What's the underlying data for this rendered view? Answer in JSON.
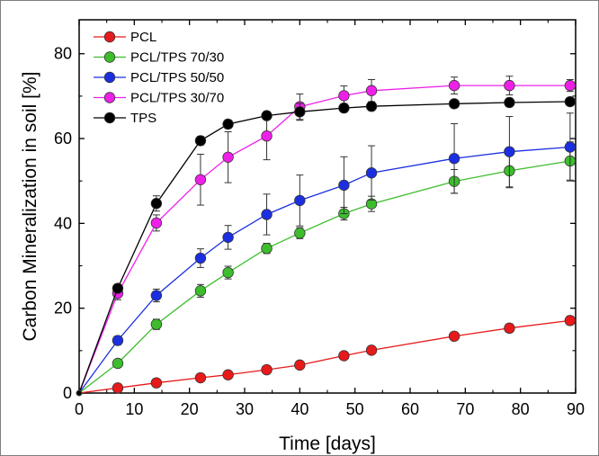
{
  "chart_data": {
    "type": "line",
    "title": "",
    "xlabel": "Time [days]",
    "ylabel": "Carbon Mineralization in soil [%]",
    "xlim": [
      0,
      90
    ],
    "ylim": [
      0,
      88
    ],
    "xticks": [
      0,
      10,
      20,
      30,
      40,
      50,
      60,
      70,
      80,
      90
    ],
    "yticks": [
      0,
      20,
      40,
      60,
      80
    ],
    "grid": false,
    "legend_position": "top-left",
    "series": [
      {
        "name": "PCL",
        "color": "#e8191a",
        "x": [
          0,
          7,
          14,
          22,
          27,
          34,
          40,
          48,
          53,
          68,
          78,
          89
        ],
        "y": [
          0,
          1.2,
          2.4,
          3.6,
          4.3,
          5.5,
          6.6,
          8.8,
          10.1,
          13.4,
          15.3,
          17.1
        ],
        "err": [
          0,
          0.3,
          0.4,
          0.5,
          0.5,
          0.6,
          0.7,
          0.9,
          0.8,
          0.9,
          1.0,
          1.0
        ]
      },
      {
        "name": "PCL/TPS 70/30",
        "color": "#3dbd2c",
        "x": [
          0,
          7,
          14,
          22,
          27,
          34,
          40,
          48,
          53,
          68,
          78,
          89
        ],
        "y": [
          0,
          7,
          16.2,
          24.1,
          28.4,
          34.1,
          37.7,
          42.3,
          44.6,
          49.9,
          52.4,
          54.7
        ],
        "err": [
          0,
          0.8,
          1.2,
          1.5,
          1.5,
          1.2,
          1.3,
          1.5,
          1.8,
          2.8,
          4.0,
          4.5
        ]
      },
      {
        "name": "PCL/TPS 50/50",
        "color": "#1b2fe0",
        "x": [
          0,
          7,
          14,
          22,
          27,
          34,
          40,
          48,
          53,
          68,
          78,
          89
        ],
        "y": [
          0,
          12.4,
          23,
          31.8,
          36.7,
          42.1,
          45.4,
          49,
          51.9,
          55.3,
          56.9,
          58
        ],
        "err": [
          0,
          1.0,
          1.5,
          2.2,
          2.8,
          4.8,
          6.0,
          6.7,
          6.4,
          8.2,
          8.3,
          8.0
        ]
      },
      {
        "name": "PCL/TPS 30/70",
        "color": "#ee20e8",
        "x": [
          0,
          7,
          14,
          22,
          27,
          34,
          40,
          48,
          53,
          68,
          78,
          89
        ],
        "y": [
          0,
          23.5,
          40.1,
          50.3,
          55.6,
          60.6,
          67.5,
          70.1,
          71.3,
          72.5,
          72.5,
          72.5
        ],
        "err": [
          0,
          1.5,
          1.9,
          6.0,
          6.0,
          5.6,
          3.0,
          2.3,
          2.6,
          2.0,
          2.2,
          1.4
        ]
      },
      {
        "name": "TPS",
        "color": "#000000",
        "x": [
          0,
          7,
          14,
          22,
          27,
          34,
          40,
          48,
          53,
          68,
          78,
          89
        ],
        "y": [
          0,
          24.7,
          44.7,
          59.5,
          63.4,
          65.4,
          66.3,
          67.2,
          67.6,
          68.2,
          68.5,
          68.7
        ],
        "err": [
          0,
          0.8,
          1.8,
          1.0,
          1.0,
          0.8,
          2.0,
          1.0,
          1.0,
          0.9,
          1.0,
          0.9
        ]
      }
    ]
  }
}
